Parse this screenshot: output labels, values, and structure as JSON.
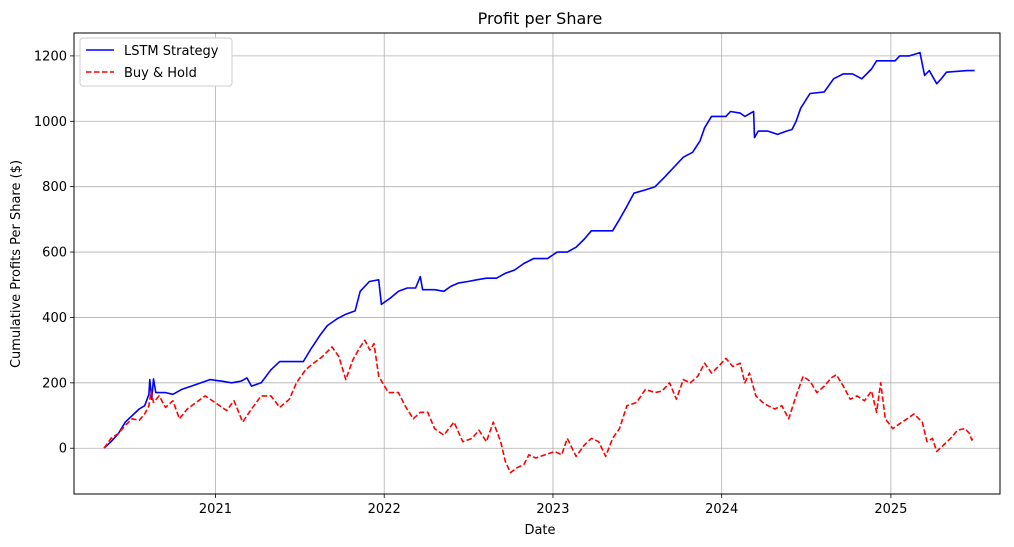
{
  "chart_data": {
    "type": "line",
    "title": "Profit per Share",
    "xlabel": "Date",
    "ylabel": "Cumulative Profits Per Share ($)",
    "xlim": [
      "2020-03-01",
      "2025-08-25"
    ],
    "ylim": [
      -140,
      1270
    ],
    "xticks": [
      {
        "date": "2021-01-01",
        "label": "2021"
      },
      {
        "date": "2022-01-01",
        "label": "2022"
      },
      {
        "date": "2023-01-01",
        "label": "2023"
      },
      {
        "date": "2024-01-01",
        "label": "2024"
      },
      {
        "date": "2025-01-01",
        "label": "2025"
      }
    ],
    "yticks": [
      0,
      200,
      400,
      600,
      800,
      1000,
      1200
    ],
    "grid": true,
    "legend_position": "top-left",
    "series": [
      {
        "name": "LSTM Strategy",
        "color": "#0000ff",
        "line_style": "solid",
        "points": [
          [
            "2020-05-05",
            0
          ],
          [
            "2020-05-20",
            20
          ],
          [
            "2020-06-05",
            45
          ],
          [
            "2020-06-20",
            80
          ],
          [
            "2020-07-05",
            100
          ],
          [
            "2020-07-20",
            120
          ],
          [
            "2020-08-01",
            130
          ],
          [
            "2020-08-10",
            165
          ],
          [
            "2020-08-12",
            210
          ],
          [
            "2020-08-16",
            150
          ],
          [
            "2020-08-20",
            212
          ],
          [
            "2020-08-25",
            170
          ],
          [
            "2020-09-15",
            170
          ],
          [
            "2020-10-01",
            165
          ],
          [
            "2020-10-20",
            180
          ],
          [
            "2020-11-10",
            190
          ],
          [
            "2020-12-01",
            200
          ],
          [
            "2020-12-20",
            210
          ],
          [
            "2021-01-15",
            205
          ],
          [
            "2021-02-05",
            200
          ],
          [
            "2021-02-25",
            205
          ],
          [
            "2021-03-10",
            215
          ],
          [
            "2021-03-20",
            190
          ],
          [
            "2021-04-10",
            200
          ],
          [
            "2021-05-01",
            240
          ],
          [
            "2021-05-20",
            265
          ],
          [
            "2021-06-15",
            265
          ],
          [
            "2021-07-10",
            265
          ],
          [
            "2021-07-25",
            300
          ],
          [
            "2021-08-15",
            345
          ],
          [
            "2021-08-31",
            375
          ],
          [
            "2021-09-20",
            395
          ],
          [
            "2021-10-10",
            410
          ],
          [
            "2021-10-30",
            420
          ],
          [
            "2021-11-10",
            480
          ],
          [
            "2021-11-30",
            510
          ],
          [
            "2021-12-20",
            515
          ],
          [
            "2021-12-26",
            440
          ],
          [
            "2022-01-15",
            460
          ],
          [
            "2022-02-01",
            480
          ],
          [
            "2022-02-20",
            490
          ],
          [
            "2022-03-10",
            490
          ],
          [
            "2022-03-20",
            525
          ],
          [
            "2022-03-25",
            485
          ],
          [
            "2022-04-20",
            485
          ],
          [
            "2022-05-10",
            480
          ],
          [
            "2022-05-25",
            495
          ],
          [
            "2022-06-10",
            505
          ],
          [
            "2022-07-01",
            510
          ],
          [
            "2022-07-20",
            515
          ],
          [
            "2022-08-10",
            520
          ],
          [
            "2022-09-01",
            520
          ],
          [
            "2022-09-20",
            535
          ],
          [
            "2022-10-10",
            545
          ],
          [
            "2022-10-30",
            565
          ],
          [
            "2022-11-20",
            580
          ],
          [
            "2022-12-20",
            580
          ],
          [
            "2023-01-10",
            600
          ],
          [
            "2023-02-01",
            600
          ],
          [
            "2023-02-20",
            615
          ],
          [
            "2023-03-10",
            640
          ],
          [
            "2023-03-25",
            665
          ],
          [
            "2023-04-20",
            665
          ],
          [
            "2023-05-10",
            665
          ],
          [
            "2023-05-25",
            700
          ],
          [
            "2023-06-10",
            740
          ],
          [
            "2023-06-25",
            780
          ],
          [
            "2023-07-20",
            790
          ],
          [
            "2023-08-10",
            800
          ],
          [
            "2023-08-31",
            830
          ],
          [
            "2023-09-20",
            860
          ],
          [
            "2023-10-10",
            890
          ],
          [
            "2023-10-30",
            905
          ],
          [
            "2023-11-15",
            940
          ],
          [
            "2023-11-25",
            980
          ],
          [
            "2023-12-10",
            1015
          ],
          [
            "2024-01-10",
            1015
          ],
          [
            "2024-01-20",
            1030
          ],
          [
            "2024-02-10",
            1025
          ],
          [
            "2024-02-20",
            1015
          ],
          [
            "2024-03-10",
            1030
          ],
          [
            "2024-03-12",
            950
          ],
          [
            "2024-03-20",
            970
          ],
          [
            "2024-04-10",
            970
          ],
          [
            "2024-05-01",
            960
          ],
          [
            "2024-05-20",
            970
          ],
          [
            "2024-06-01",
            975
          ],
          [
            "2024-06-10",
            1000
          ],
          [
            "2024-06-20",
            1040
          ],
          [
            "2024-07-10",
            1085
          ],
          [
            "2024-08-10",
            1090
          ],
          [
            "2024-08-30",
            1130
          ],
          [
            "2024-09-20",
            1145
          ],
          [
            "2024-10-10",
            1145
          ],
          [
            "2024-10-30",
            1130
          ],
          [
            "2024-11-20",
            1160
          ],
          [
            "2024-12-01",
            1185
          ],
          [
            "2024-12-20",
            1185
          ],
          [
            "2025-01-10",
            1185
          ],
          [
            "2025-01-20",
            1200
          ],
          [
            "2025-02-10",
            1200
          ],
          [
            "2025-03-05",
            1210
          ],
          [
            "2025-03-15",
            1140
          ],
          [
            "2025-03-25",
            1155
          ],
          [
            "2025-04-10",
            1115
          ],
          [
            "2025-04-20",
            1130
          ],
          [
            "2025-05-01",
            1150
          ],
          [
            "2025-06-15",
            1155
          ],
          [
            "2025-07-01",
            1155
          ]
        ]
      },
      {
        "name": "Buy & Hold",
        "color": "#ff0000",
        "line_style": "dashed",
        "points": [
          [
            "2020-05-05",
            0
          ],
          [
            "2020-05-20",
            30
          ],
          [
            "2020-06-05",
            45
          ],
          [
            "2020-06-20",
            70
          ],
          [
            "2020-07-05",
            90
          ],
          [
            "2020-07-20",
            85
          ],
          [
            "2020-08-01",
            105
          ],
          [
            "2020-08-10",
            130
          ],
          [
            "2020-08-15",
            175
          ],
          [
            "2020-08-20",
            140
          ],
          [
            "2020-09-01",
            160
          ],
          [
            "2020-09-15",
            125
          ],
          [
            "2020-10-01",
            145
          ],
          [
            "2020-10-15",
            90
          ],
          [
            "2020-11-01",
            120
          ],
          [
            "2020-11-20",
            140
          ],
          [
            "2020-12-10",
            160
          ],
          [
            "2021-01-10",
            130
          ],
          [
            "2021-01-25",
            115
          ],
          [
            "2021-02-10",
            145
          ],
          [
            "2021-03-01",
            80
          ],
          [
            "2021-03-20",
            120
          ],
          [
            "2021-04-10",
            160
          ],
          [
            "2021-05-01",
            160
          ],
          [
            "2021-05-20",
            125
          ],
          [
            "2021-06-10",
            150
          ],
          [
            "2021-06-25",
            200
          ],
          [
            "2021-07-15",
            240
          ],
          [
            "2021-08-01",
            260
          ],
          [
            "2021-08-20",
            280
          ],
          [
            "2021-09-10",
            310
          ],
          [
            "2021-09-25",
            280
          ],
          [
            "2021-10-10",
            210
          ],
          [
            "2021-10-25",
            270
          ],
          [
            "2021-11-10",
            310
          ],
          [
            "2021-11-20",
            330
          ],
          [
            "2021-12-01",
            300
          ],
          [
            "2021-12-10",
            320
          ],
          [
            "2021-12-20",
            220
          ],
          [
            "2022-01-10",
            170
          ],
          [
            "2022-02-01",
            170
          ],
          [
            "2022-02-15",
            130
          ],
          [
            "2022-03-05",
            90
          ],
          [
            "2022-03-20",
            110
          ],
          [
            "2022-04-05",
            110
          ],
          [
            "2022-04-20",
            60
          ],
          [
            "2022-05-10",
            40
          ],
          [
            "2022-06-01",
            80
          ],
          [
            "2022-06-20",
            20
          ],
          [
            "2022-07-10",
            30
          ],
          [
            "2022-07-25",
            55
          ],
          [
            "2022-08-10",
            20
          ],
          [
            "2022-08-25",
            80
          ],
          [
            "2022-09-10",
            20
          ],
          [
            "2022-09-20",
            -40
          ],
          [
            "2022-10-01",
            -75
          ],
          [
            "2022-10-15",
            -60
          ],
          [
            "2022-10-30",
            -50
          ],
          [
            "2022-11-10",
            -20
          ],
          [
            "2022-11-25",
            -30
          ],
          [
            "2022-12-15",
            -20
          ],
          [
            "2023-01-05",
            -10
          ],
          [
            "2023-01-20",
            -20
          ],
          [
            "2023-02-01",
            30
          ],
          [
            "2023-02-20",
            -25
          ],
          [
            "2023-03-10",
            10
          ],
          [
            "2023-03-25",
            30
          ],
          [
            "2023-04-10",
            20
          ],
          [
            "2023-04-25",
            -25
          ],
          [
            "2023-05-10",
            30
          ],
          [
            "2023-05-25",
            60
          ],
          [
            "2023-06-10",
            130
          ],
          [
            "2023-07-01",
            140
          ],
          [
            "2023-07-20",
            180
          ],
          [
            "2023-08-10",
            170
          ],
          [
            "2023-08-25",
            175
          ],
          [
            "2023-09-10",
            200
          ],
          [
            "2023-09-25",
            150
          ],
          [
            "2023-10-10",
            210
          ],
          [
            "2023-10-25",
            200
          ],
          [
            "2023-11-10",
            220
          ],
          [
            "2023-11-25",
            260
          ],
          [
            "2023-12-10",
            230
          ],
          [
            "2023-12-25",
            250
          ],
          [
            "2024-01-10",
            275
          ],
          [
            "2024-01-25",
            250
          ],
          [
            "2024-02-10",
            260
          ],
          [
            "2024-02-20",
            200
          ],
          [
            "2024-03-01",
            230
          ],
          [
            "2024-03-15",
            160
          ],
          [
            "2024-03-30",
            140
          ],
          [
            "2024-04-10",
            130
          ],
          [
            "2024-04-25",
            120
          ],
          [
            "2024-05-10",
            130
          ],
          [
            "2024-05-25",
            90
          ],
          [
            "2024-06-10",
            160
          ],
          [
            "2024-06-25",
            220
          ],
          [
            "2024-07-10",
            205
          ],
          [
            "2024-07-25",
            170
          ],
          [
            "2024-08-10",
            190
          ],
          [
            "2024-08-25",
            215
          ],
          [
            "2024-09-05",
            225
          ],
          [
            "2024-09-20",
            190
          ],
          [
            "2024-10-05",
            150
          ],
          [
            "2024-10-20",
            160
          ],
          [
            "2024-11-05",
            145
          ],
          [
            "2024-11-20",
            175
          ],
          [
            "2024-12-01",
            110
          ],
          [
            "2024-12-10",
            200
          ],
          [
            "2024-12-20",
            90
          ],
          [
            "2025-01-05",
            60
          ],
          [
            "2025-01-20",
            75
          ],
          [
            "2025-02-05",
            90
          ],
          [
            "2025-02-20",
            105
          ],
          [
            "2025-03-10",
            80
          ],
          [
            "2025-03-20",
            20
          ],
          [
            "2025-04-01",
            30
          ],
          [
            "2025-04-10",
            -10
          ],
          [
            "2025-04-25",
            10
          ],
          [
            "2025-05-10",
            30
          ],
          [
            "2025-05-25",
            55
          ],
          [
            "2025-06-10",
            60
          ],
          [
            "2025-06-20",
            45
          ],
          [
            "2025-06-25",
            25
          ],
          [
            "2025-07-01",
            35
          ]
        ]
      }
    ]
  }
}
